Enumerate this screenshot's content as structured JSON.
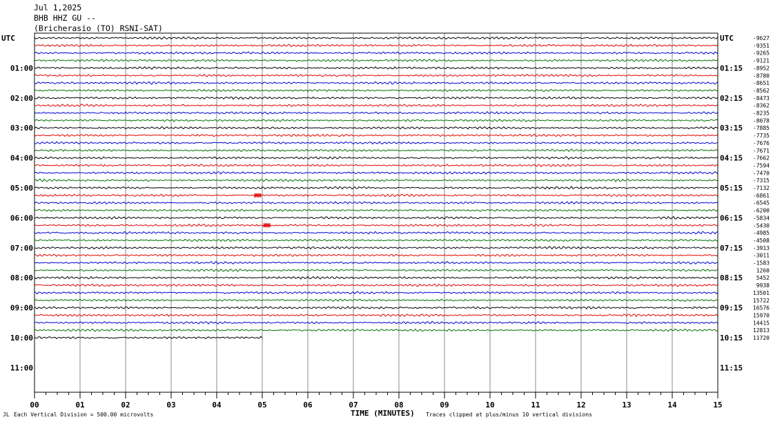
{
  "header": {
    "date": "Jul 1,2025",
    "station": "BHB HHZ GU --",
    "location": "(Bricherasio (TO) RSNI-SAT)"
  },
  "chart_data": {
    "type": "line",
    "title": "BHB HHZ GU --",
    "x_axis": {
      "label": "TIME (MINUTES)",
      "range": [
        0,
        15
      ],
      "ticks": [
        "00",
        "01",
        "02",
        "03",
        "04",
        "05",
        "06",
        "07",
        "08",
        "09",
        "10",
        "11",
        "12",
        "13",
        "14",
        "15"
      ]
    },
    "left_time_labels": [
      "UTC",
      "01:00",
      "02:00",
      "03:00",
      "04:00",
      "05:00",
      "06:00",
      "07:00",
      "08:00",
      "09:00",
      "10:00",
      "11:00"
    ],
    "right_time_labels": [
      "UTC",
      "01:15",
      "02:15",
      "03:15",
      "04:15",
      "05:15",
      "06:15",
      "07:15",
      "08:15",
      "09:15",
      "10:15",
      "11:15"
    ],
    "trace_colors": [
      "#000000",
      "#e00000",
      "#0000d0",
      "#007000"
    ],
    "trace_offsets": [
      "-9627",
      "-9351",
      "-9265",
      "-9121",
      "-8952",
      "-8780",
      "-8651",
      "-8562",
      "-8473",
      "-8362",
      "-8235",
      "-8078",
      "-7885",
      "-7735",
      "-7676",
      "-7671",
      "-7662",
      "-7594",
      "-7470",
      "-7315",
      "-7132",
      "-6861",
      "-6545",
      "-6200",
      "-5834",
      "-5430",
      "-4985",
      "-4508",
      "-3913",
      "-3011",
      "-1583",
      "1260",
      "5452",
      "9938",
      "13501",
      "15722",
      "16576",
      "15970",
      "14415",
      "12813",
      "11720"
    ],
    "traces_count": 41,
    "last_trace_end_minute": 5,
    "event_markers": [
      {
        "trace": 21,
        "minute": 4.9
      },
      {
        "trace": 25,
        "minute": 5.1
      }
    ],
    "grid": "vertical lines every minute",
    "scale_note": "Each Vertical Division =  500.00 microvolts",
    "clip_note": "Traces clipped at plus/minus 10 vertical divisions",
    "corner_mark": "JL"
  }
}
